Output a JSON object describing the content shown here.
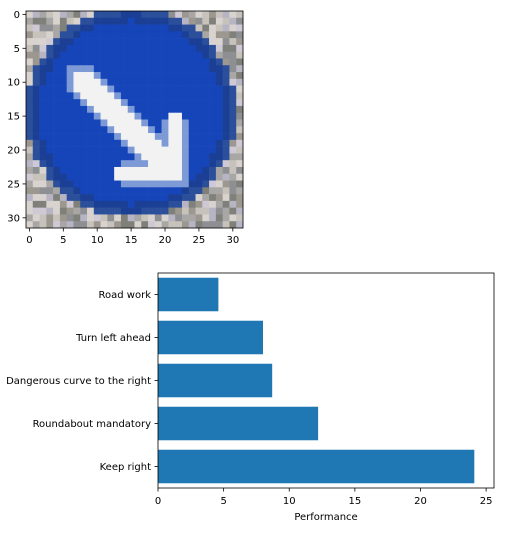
{
  "chart_data": [
    {
      "type": "image",
      "content": "pixelated traffic sign: blue circle with white diagonal arrow pointing down-right",
      "xlim": [
        -0.5,
        31.5
      ],
      "ylim": [
        31.5,
        -0.5
      ],
      "xticks": [
        0,
        5,
        10,
        15,
        20,
        25,
        30
      ],
      "yticks": [
        0,
        5,
        10,
        15,
        20,
        25,
        30
      ],
      "colors": {
        "sign_blue": "#1545b8",
        "arrow_white": "#f2f2f2",
        "background": "#b8b5b0"
      }
    },
    {
      "type": "bar",
      "orientation": "horizontal",
      "categories": [
        "Keep right",
        "Roundabout mandatory",
        "Dangerous curve to the right",
        "Turn left ahead",
        "Road work"
      ],
      "values": [
        24.1,
        12.2,
        8.7,
        8.0,
        4.6
      ],
      "xlabel": "Performance",
      "ylabel": "",
      "xlim": [
        0,
        25.6
      ],
      "xticks": [
        0,
        5,
        10,
        15,
        20,
        25
      ],
      "grid": false,
      "color": "#1f77b4"
    }
  ]
}
